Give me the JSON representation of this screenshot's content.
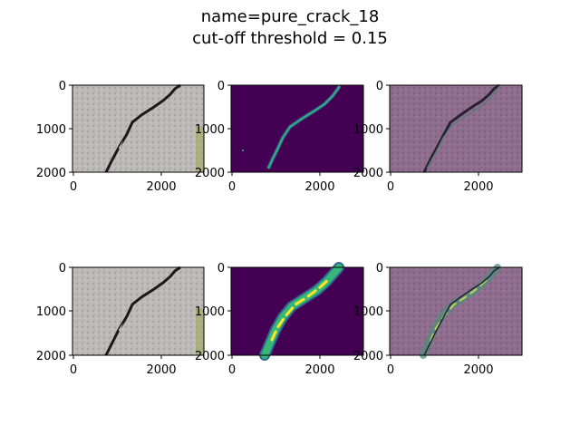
{
  "figure": {
    "title_line1": "name=pure_crack_18",
    "title_line2": "cut-off threshold = 0.15"
  },
  "axes": {
    "y_ticks": [
      "0",
      "1000",
      "2000"
    ],
    "x_ticks": [
      "0",
      "2000"
    ]
  },
  "rows": [
    {
      "panels": [
        {
          "kind": "photo"
        },
        {
          "kind": "mask-thin"
        },
        {
          "kind": "photo-overlay-thin"
        }
      ]
    },
    {
      "panels": [
        {
          "kind": "photo"
        },
        {
          "kind": "mask-thick"
        },
        {
          "kind": "photo-overlay-thick"
        }
      ]
    }
  ],
  "colors": {
    "viridis_bg": "#440154",
    "viridis_mid": "#31688e",
    "viridis_green": "#35b779",
    "viridis_yellow": "#fde725",
    "concrete": "#b9b7b3",
    "overlay": "#8f6d8f"
  }
}
